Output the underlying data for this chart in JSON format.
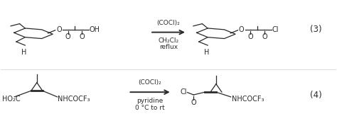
{
  "bg_color": "#ffffff",
  "text_color": "#2a2a2a",
  "reaction1": {
    "reagent1": "(COCl)₂",
    "reagent2": "CH₂Cl₂",
    "reagent3": "reflux",
    "number": "(3)"
  },
  "reaction2": {
    "reagent1": "(COCl)₂",
    "reagent2": "pyridine",
    "reagent3": "0 °C to rt",
    "number": "(4)"
  }
}
